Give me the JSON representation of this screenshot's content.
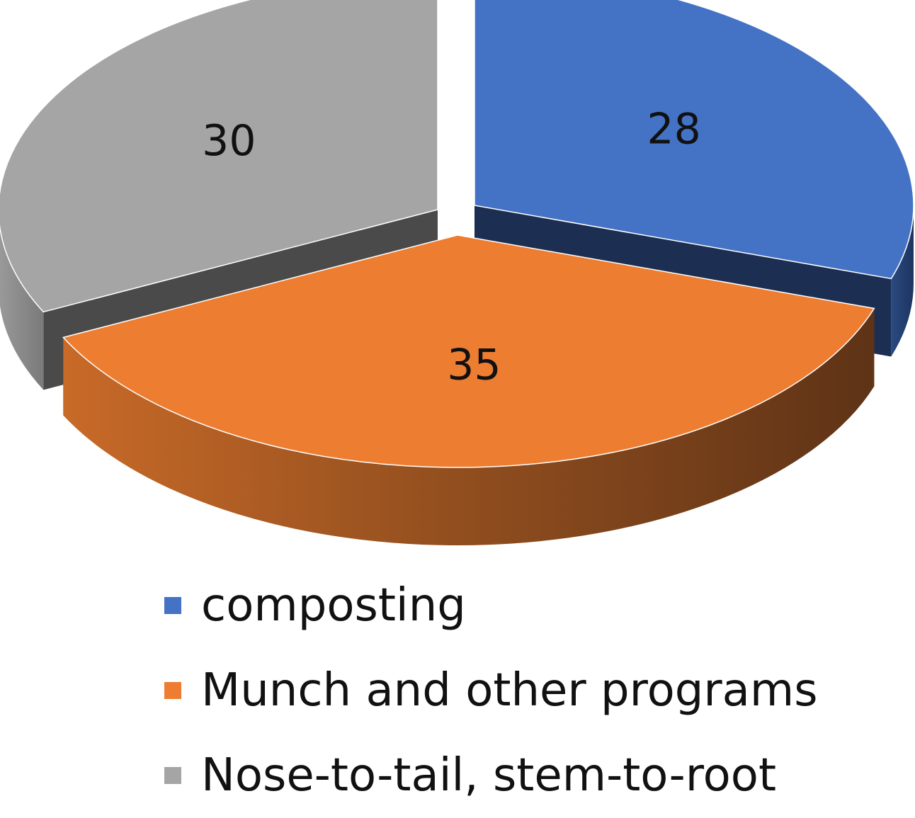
{
  "chart_data": {
    "type": "pie",
    "categories": [
      "composting",
      "Munch and other programs",
      "Nose-to-tail, stem-to-root"
    ],
    "values": [
      28,
      35,
      30
    ],
    "colors": [
      "#4472c4",
      "#ed7d31",
      "#a5a5a5"
    ],
    "exploded": true,
    "style": "3d",
    "legend_position": "bottom",
    "title": ""
  },
  "legend": {
    "items": [
      {
        "label": "composting",
        "color": "#4472c4"
      },
      {
        "label": "Munch and other programs",
        "color": "#ed7d31"
      },
      {
        "label": "Nose-to-tail, stem-to-root",
        "color": "#a5a5a5"
      }
    ]
  }
}
